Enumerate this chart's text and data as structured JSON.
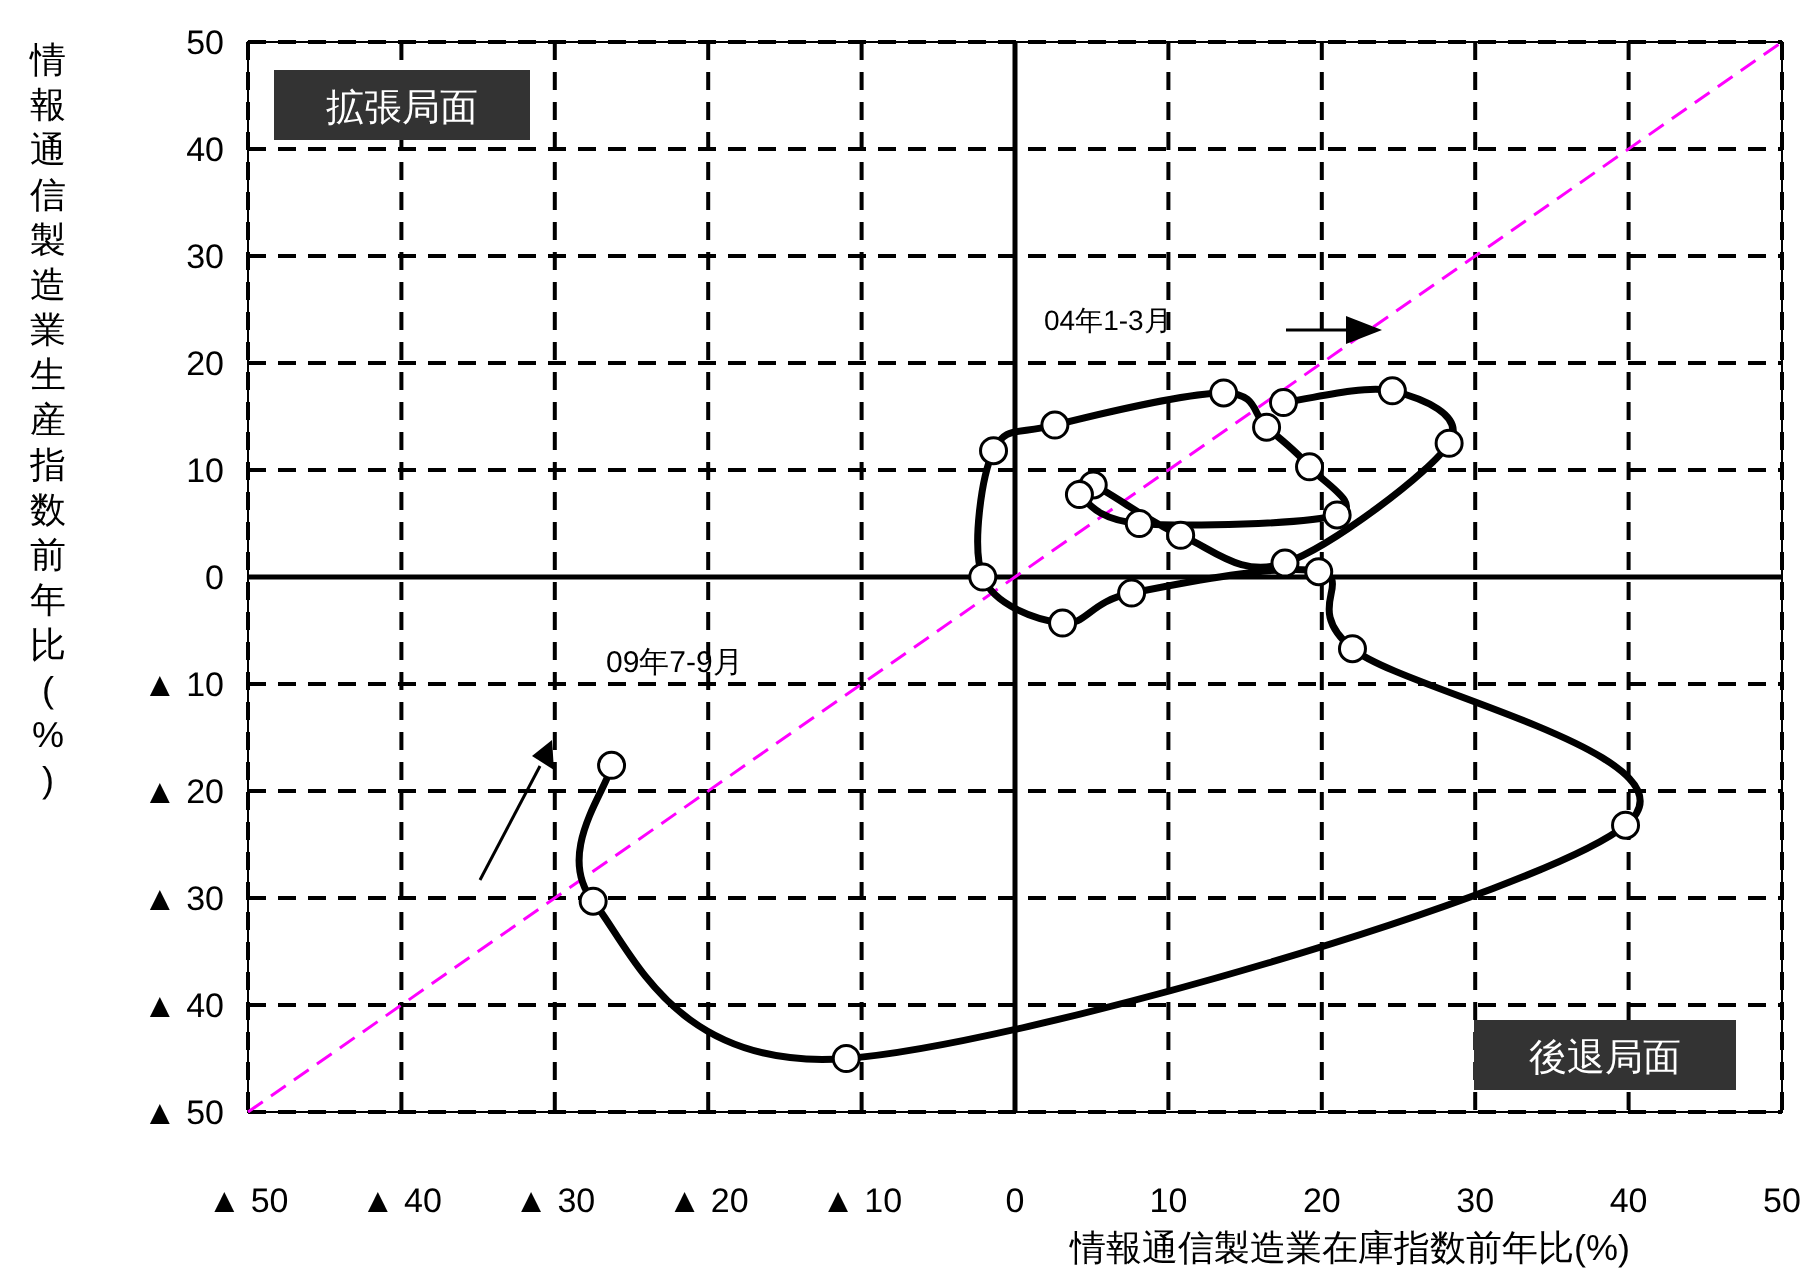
{
  "chart_data": {
    "type": "line",
    "xlabel": "情報通信製造業在庫指数前年比(%)",
    "ylabel": "情報通信製造業生産指数前年比(%)",
    "xlim": [
      -50,
      50
    ],
    "ylim": [
      -50,
      50
    ],
    "xticks": [
      {
        "value": -50,
        "label": "▲ 50"
      },
      {
        "value": -40,
        "label": "▲ 40"
      },
      {
        "value": -30,
        "label": "▲ 30"
      },
      {
        "value": -20,
        "label": "▲ 20"
      },
      {
        "value": -10,
        "label": "▲ 10"
      },
      0,
      10,
      20,
      30,
      40,
      50
    ],
    "yticks": [
      {
        "value": -50,
        "label": "▲ 50"
      },
      {
        "value": -40,
        "label": "▲ 40"
      },
      {
        "value": -30,
        "label": "▲ 30"
      },
      {
        "value": -20,
        "label": "▲ 20"
      },
      {
        "value": -10,
        "label": "▲ 10"
      },
      0,
      10,
      20,
      30,
      40,
      50
    ],
    "grid": true,
    "series": [
      {
        "type": "line",
        "color": "#000000",
        "marker": "circle",
        "line_style": "solid",
        "x": [
          17.5,
          24.6,
          28.3,
          17.6,
          10.8,
          5.1,
          4.2,
          8.1,
          21.0,
          19.2,
          16.4,
          13.6,
          2.6,
          -1.4,
          -2.1,
          3.1,
          7.6,
          19.8,
          22.0,
          39.8,
          -11.0,
          -27.5,
          -26.3
        ],
        "values": [
          16.3,
          17.4,
          12.5,
          1.3,
          3.9,
          8.6,
          7.7,
          5.0,
          5.8,
          10.3,
          14.0,
          17.2,
          14.2,
          11.8,
          0,
          -4.3,
          -1.5,
          0.5,
          -6.7,
          -23.2,
          -45.0,
          -30.3,
          -17.6
        ]
      },
      {
        "type": "line",
        "color": "#ff00ff",
        "marker": "none",
        "line_style": "dashed",
        "x": [
          -50,
          50
        ],
        "values": [
          -50,
          50
        ]
      }
    ],
    "annotations": [
      "拡張局面",
      "後退局面",
      "04年1-3月",
      "09年7-9月"
    ]
  }
}
